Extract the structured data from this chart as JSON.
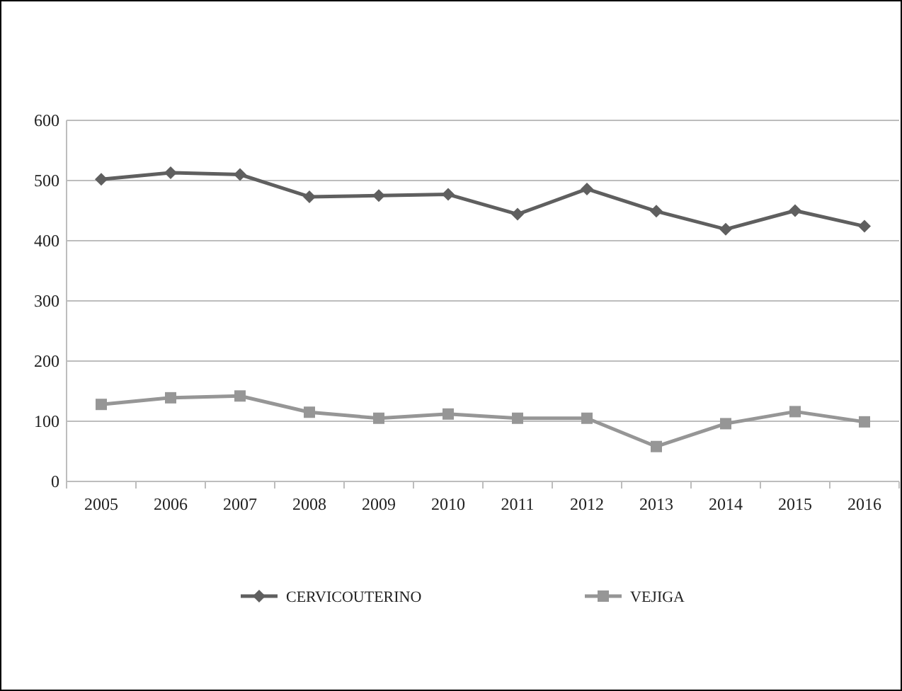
{
  "chart_data": {
    "type": "line",
    "categories": [
      "2005",
      "2006",
      "2007",
      "2008",
      "2009",
      "2010",
      "2011",
      "2012",
      "2013",
      "2014",
      "2015",
      "2016"
    ],
    "series": [
      {
        "name": "CERVICOUTERINO",
        "color": "#5f5f5f",
        "marker": "diamond",
        "values": [
          502,
          513,
          510,
          473,
          475,
          477,
          444,
          486,
          449,
          419,
          450,
          424
        ]
      },
      {
        "name": "VEJIGA",
        "color": "#969696",
        "marker": "square",
        "values": [
          128,
          139,
          142,
          115,
          105,
          112,
          105,
          105,
          58,
          96,
          116,
          99
        ]
      }
    ],
    "ylim": [
      0,
      600
    ],
    "yticks": [
      0,
      100,
      200,
      300,
      400,
      500,
      600
    ],
    "grid": "y",
    "legend": "bottom"
  }
}
